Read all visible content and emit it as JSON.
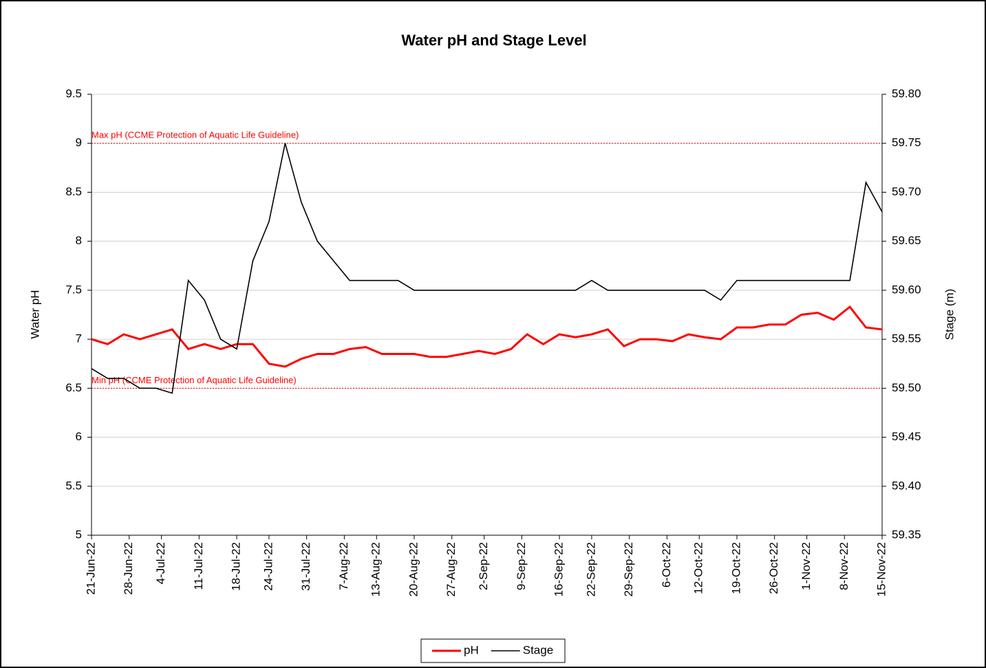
{
  "chart_data": {
    "type": "line",
    "title": "Water pH and Stage Level",
    "y_label": "Water pH",
    "y2_label": "Stage (m)",
    "x": [
      "21-Jun-22",
      "24-Jun-22",
      "27-Jun-22",
      "30-Jun-22",
      "3-Jul-22",
      "6-Jul-22",
      "9-Jul-22",
      "12-Jul-22",
      "15-Jul-22",
      "18-Jul-22",
      "21-Jul-22",
      "24-Jul-22",
      "27-Jul-22",
      "30-Jul-22",
      "2-Aug-22",
      "5-Aug-22",
      "8-Aug-22",
      "11-Aug-22",
      "14-Aug-22",
      "17-Aug-22",
      "20-Aug-22",
      "23-Aug-22",
      "26-Aug-22",
      "29-Aug-22",
      "1-Sep-22",
      "4-Sep-22",
      "7-Sep-22",
      "10-Sep-22",
      "13-Sep-22",
      "16-Sep-22",
      "19-Sep-22",
      "22-Sep-22",
      "25-Sep-22",
      "28-Sep-22",
      "1-Oct-22",
      "4-Oct-22",
      "7-Oct-22",
      "10-Oct-22",
      "13-Oct-22",
      "16-Oct-22",
      "19-Oct-22",
      "22-Oct-22",
      "25-Oct-22",
      "28-Oct-22",
      "31-Oct-22",
      "3-Nov-22",
      "6-Nov-22",
      "9-Nov-22",
      "12-Nov-22",
      "15-Nov-22"
    ],
    "series": [
      {
        "name": "pH",
        "color": "#ff0000",
        "axis": "y",
        "values": [
          7.0,
          6.95,
          7.05,
          7.0,
          7.05,
          7.1,
          6.9,
          6.95,
          6.9,
          6.95,
          6.95,
          6.75,
          6.72,
          6.8,
          6.85,
          6.85,
          6.9,
          6.92,
          6.85,
          6.85,
          6.85,
          6.82,
          6.82,
          6.85,
          6.88,
          6.85,
          6.9,
          7.05,
          6.95,
          7.05,
          7.02,
          7.05,
          7.1,
          6.93,
          7.0,
          7.0,
          6.98,
          7.05,
          7.02,
          7.0,
          7.12,
          7.12,
          7.15,
          7.15,
          7.25,
          7.27,
          7.2,
          7.33,
          7.12,
          7.1
        ]
      },
      {
        "name": "Stage",
        "color": "#000000",
        "axis": "y2",
        "values": [
          59.52,
          59.51,
          59.51,
          59.5,
          59.5,
          59.495,
          59.61,
          59.59,
          59.55,
          59.54,
          59.63,
          59.67,
          59.75,
          59.69,
          59.65,
          59.63,
          59.61,
          59.61,
          59.61,
          59.61,
          59.6,
          59.6,
          59.6,
          59.6,
          59.6,
          59.6,
          59.6,
          59.6,
          59.6,
          59.6,
          59.6,
          59.61,
          59.6,
          59.6,
          59.6,
          59.6,
          59.6,
          59.6,
          59.6,
          59.59,
          59.61,
          59.61,
          59.61,
          59.61,
          59.61,
          59.61,
          59.61,
          59.61,
          59.71,
          59.68
        ]
      }
    ],
    "xlim": [
      "21-Jun-22",
      "15-Nov-22"
    ],
    "xticks": [
      "21-Jun-22",
      "28-Jun-22",
      "4-Jul-22",
      "11-Jul-22",
      "18-Jul-22",
      "24-Jul-22",
      "31-Jul-22",
      "7-Aug-22",
      "13-Aug-22",
      "20-Aug-22",
      "27-Aug-22",
      "2-Sep-22",
      "9-Sep-22",
      "16-Sep-22",
      "22-Sep-22",
      "29-Sep-22",
      "6-Oct-22",
      "12-Oct-22",
      "19-Oct-22",
      "26-Oct-22",
      "1-Nov-22",
      "8-Nov-22",
      "15-Nov-22"
    ],
    "ylim": [
      5,
      9.5
    ],
    "yticks": [
      5,
      5.5,
      6,
      6.5,
      7,
      7.5,
      8,
      8.5,
      9,
      9.5
    ],
    "y2lim": [
      59.35,
      59.8
    ],
    "y2ticks": [
      {
        "value": 59.35,
        "label": "59.35"
      },
      {
        "value": 59.4,
        "label": "59.40"
      },
      {
        "value": 59.45,
        "label": "59.45"
      },
      {
        "value": 59.5,
        "label": "59.50"
      },
      {
        "value": 59.55,
        "label": "59.55"
      },
      {
        "value": 59.6,
        "label": "59.60"
      },
      {
        "value": 59.65,
        "label": "59.65"
      },
      {
        "value": 59.7,
        "label": "59.70"
      },
      {
        "value": 59.75,
        "label": "59.75"
      },
      {
        "value": 59.8,
        "label": "59.80"
      }
    ],
    "grid": true,
    "legend": "bottom",
    "reference_lines": [
      {
        "value": 9,
        "label": "Max pH (CCME Protection of Aquatic Life Guideline)",
        "color": "#ff0000"
      },
      {
        "value": 6.5,
        "label": "Min pH (CCME Protection of Aquatic Life Guideline)",
        "color": "#ff0000"
      }
    ]
  }
}
